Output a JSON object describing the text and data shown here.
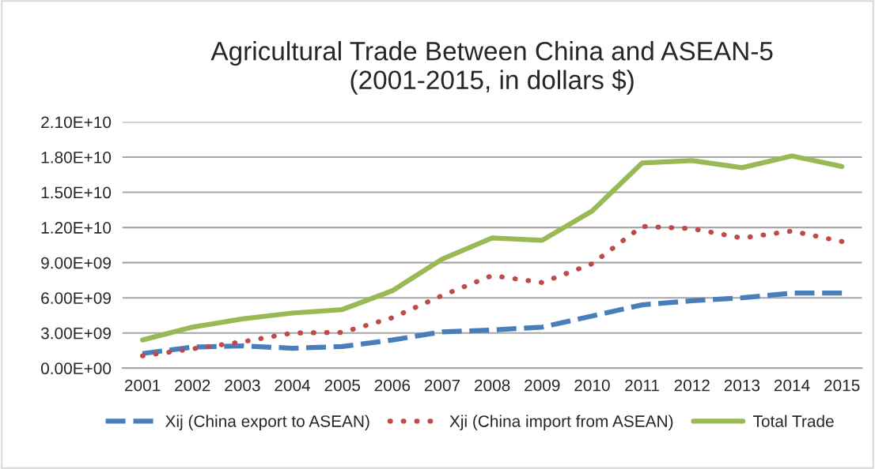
{
  "chart_data": {
    "type": "line",
    "title": "Agricultural Trade Between China and ASEAN-5\n(2001-2015, in dollars $)",
    "categories": [
      "2001",
      "2002",
      "2003",
      "2004",
      "2005",
      "2006",
      "2007",
      "2008",
      "2009",
      "2010",
      "2011",
      "2012",
      "2013",
      "2014",
      "2015"
    ],
    "series": [
      {
        "name": "Xij (China export to ASEAN)",
        "color": "#4a7ebb",
        "line_style": "dashed",
        "values": [
          1250000000.0,
          1800000000.0,
          1900000000.0,
          1700000000.0,
          1850000000.0,
          2400000000.0,
          3100000000.0,
          3250000000.0,
          3500000000.0,
          4450000000.0,
          5400000000.0,
          5750000000.0,
          6000000000.0,
          6400000000.0,
          6400000000.0
        ]
      },
      {
        "name": "Xji (China import from ASEAN)",
        "color": "#be4b48",
        "line_style": "dotted",
        "values": [
          1050000000.0,
          1650000000.0,
          2250000000.0,
          3000000000.0,
          3050000000.0,
          4300000000.0,
          6200000000.0,
          7900000000.0,
          7300000000.0,
          8900000000.0,
          12100000000.0,
          11900000000.0,
          11100000000.0,
          11700000000.0,
          10800000000.0
        ]
      },
      {
        "name": "Total Trade",
        "color": "#98b954",
        "line_style": "solid",
        "values": [
          2400000000.0,
          3500000000.0,
          4200000000.0,
          4700000000.0,
          5000000000.0,
          6600000000.0,
          9300000000.0,
          11100000000.0,
          10900000000.0,
          13400000000.0,
          17500000000.0,
          17700000000.0,
          17100000000.0,
          18100000000.0,
          17200000000.0
        ]
      }
    ],
    "ylim": [
      0,
      21000000000.0
    ],
    "yticks": [
      {
        "value": 0,
        "label": "0.00E+00"
      },
      {
        "value": 3000000000.0,
        "label": "3.00E+09"
      },
      {
        "value": 6000000000.0,
        "label": "6.00E+09"
      },
      {
        "value": 9000000000.0,
        "label": "9.00E+09"
      },
      {
        "value": 12000000000.0,
        "label": "1.20E+10"
      },
      {
        "value": 15000000000.0,
        "label": "1.50E+10"
      },
      {
        "value": 18000000000.0,
        "label": "1.80E+10"
      },
      {
        "value": 21000000000.0,
        "label": "2.10E+10"
      }
    ],
    "grid": "y",
    "legend": "bottom",
    "marker": "none"
  }
}
